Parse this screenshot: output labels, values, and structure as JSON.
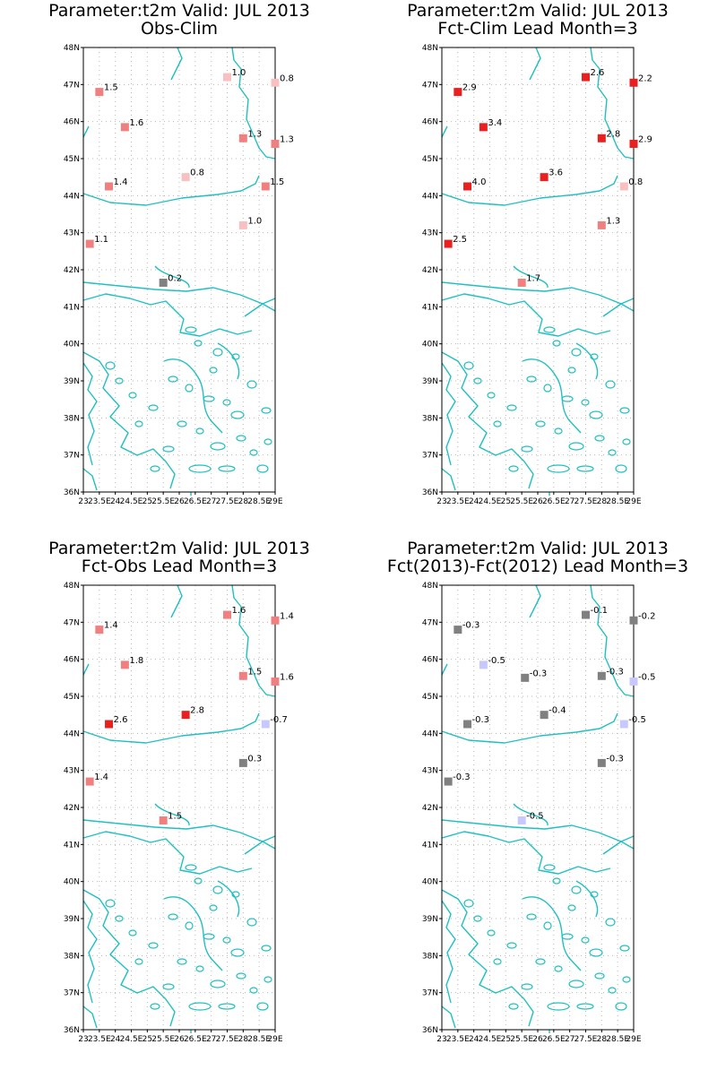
{
  "colors": {
    "coast": "#20c0c0",
    "grid": "#b8b8b8",
    "scale": {
      "dark_gray": "#808080",
      "light_blue": "#c8c8ff",
      "pale_pink": "#f8c0c0",
      "light_red": "#f08080",
      "red": "#e82020"
    }
  },
  "map": {
    "lon_range": [
      23,
      29
    ],
    "lat_range": [
      36,
      48
    ],
    "lon_ticks": [
      "23",
      "23.5E",
      "24",
      "24.5E",
      "25",
      "25.5E",
      "26",
      "26.5E",
      "27",
      "27.5E",
      "28",
      "28.5E",
      "29E"
    ],
    "lat_ticks": [
      "36N",
      "37N",
      "38N",
      "39N",
      "40N",
      "41N",
      "42N",
      "43N",
      "44N",
      "45N",
      "46N",
      "47N",
      "48N"
    ]
  },
  "panels": [
    {
      "title_line1": "Parameter:t2m Valid: JUL 2013",
      "title_line2": "Obs-Clim",
      "stations": [
        {
          "lon": 23.5,
          "lat": 46.8,
          "label": "1.5",
          "color": "light_red"
        },
        {
          "lon": 24.3,
          "lat": 45.85,
          "label": "1.6",
          "color": "light_red"
        },
        {
          "lon": 27.5,
          "lat": 47.2,
          "label": "1.0",
          "color": "pale_pink"
        },
        {
          "lon": 29.0,
          "lat": 47.05,
          "label": "0.8",
          "color": "pale_pink"
        },
        {
          "lon": 28.0,
          "lat": 45.55,
          "label": "1.3",
          "color": "light_red"
        },
        {
          "lon": 29.0,
          "lat": 45.4,
          "label": "1.3",
          "color": "light_red"
        },
        {
          "lon": 23.8,
          "lat": 44.25,
          "label": "1.4",
          "color": "light_red"
        },
        {
          "lon": 26.2,
          "lat": 44.5,
          "label": "0.8",
          "color": "pale_pink"
        },
        {
          "lon": 28.7,
          "lat": 44.25,
          "label": "1.5",
          "color": "light_red"
        },
        {
          "lon": 28.0,
          "lat": 43.2,
          "label": "1.0",
          "color": "pale_pink"
        },
        {
          "lon": 23.2,
          "lat": 42.7,
          "label": "1.1",
          "color": "light_red"
        },
        {
          "lon": 25.5,
          "lat": 41.65,
          "label": "0.2",
          "color": "dark_gray"
        }
      ]
    },
    {
      "title_line1": "Parameter:t2m Valid: JUL 2013",
      "title_line2": "Fct-Clim Lead Month=3",
      "stations": [
        {
          "lon": 23.5,
          "lat": 46.8,
          "label": "2.9",
          "color": "red"
        },
        {
          "lon": 24.3,
          "lat": 45.85,
          "label": "3.4",
          "color": "red"
        },
        {
          "lon": 27.5,
          "lat": 47.2,
          "label": "2.6",
          "color": "red"
        },
        {
          "lon": 29.0,
          "lat": 47.05,
          "label": "2.2",
          "color": "red"
        },
        {
          "lon": 28.0,
          "lat": 45.55,
          "label": "2.8",
          "color": "red"
        },
        {
          "lon": 29.0,
          "lat": 45.4,
          "label": "2.9",
          "color": "red"
        },
        {
          "lon": 23.8,
          "lat": 44.25,
          "label": "4.0",
          "color": "red"
        },
        {
          "lon": 26.2,
          "lat": 44.5,
          "label": "3.6",
          "color": "red"
        },
        {
          "lon": 28.7,
          "lat": 44.25,
          "label": "0.8",
          "color": "pale_pink"
        },
        {
          "lon": 28.0,
          "lat": 43.2,
          "label": "1.3",
          "color": "light_red"
        },
        {
          "lon": 23.2,
          "lat": 42.7,
          "label": "2.5",
          "color": "red"
        },
        {
          "lon": 25.5,
          "lat": 41.65,
          "label": "1.7",
          "color": "light_red"
        }
      ]
    },
    {
      "title_line1": "Parameter:t2m Valid: JUL 2013",
      "title_line2": "Fct-Obs Lead Month=3",
      "stations": [
        {
          "lon": 23.5,
          "lat": 46.8,
          "label": "1.4",
          "color": "light_red"
        },
        {
          "lon": 24.3,
          "lat": 45.85,
          "label": "1.8",
          "color": "light_red"
        },
        {
          "lon": 27.5,
          "lat": 47.2,
          "label": "1.6",
          "color": "light_red"
        },
        {
          "lon": 29.0,
          "lat": 47.05,
          "label": "1.4",
          "color": "light_red"
        },
        {
          "lon": 28.0,
          "lat": 45.55,
          "label": "1.5",
          "color": "light_red"
        },
        {
          "lon": 29.0,
          "lat": 45.4,
          "label": "1.6",
          "color": "light_red"
        },
        {
          "lon": 23.8,
          "lat": 44.25,
          "label": "2.6",
          "color": "red"
        },
        {
          "lon": 26.2,
          "lat": 44.5,
          "label": "2.8",
          "color": "red"
        },
        {
          "lon": 28.7,
          "lat": 44.25,
          "label": "-0.7",
          "color": "light_blue"
        },
        {
          "lon": 28.0,
          "lat": 43.2,
          "label": "0.3",
          "color": "dark_gray"
        },
        {
          "lon": 23.2,
          "lat": 42.7,
          "label": "1.4",
          "color": "light_red"
        },
        {
          "lon": 25.5,
          "lat": 41.65,
          "label": "1.5",
          "color": "light_red"
        }
      ]
    },
    {
      "title_line1": "Parameter:t2m Valid: JUL 2013",
      "title_line2": "Fct(2013)-Fct(2012) Lead Month=3",
      "stations": [
        {
          "lon": 23.5,
          "lat": 46.8,
          "label": "-0.3",
          "color": "dark_gray"
        },
        {
          "lon": 24.3,
          "lat": 45.85,
          "label": "-0.5",
          "color": "light_blue"
        },
        {
          "lon": 25.6,
          "lat": 45.5,
          "label": "-0.3",
          "color": "dark_gray"
        },
        {
          "lon": 27.5,
          "lat": 47.2,
          "label": "-0.1",
          "color": "dark_gray"
        },
        {
          "lon": 29.0,
          "lat": 47.05,
          "label": "-0.2",
          "color": "dark_gray"
        },
        {
          "lon": 28.0,
          "lat": 45.55,
          "label": "-0.3",
          "color": "dark_gray"
        },
        {
          "lon": 29.0,
          "lat": 45.4,
          "label": "-0.5",
          "color": "light_blue"
        },
        {
          "lon": 23.8,
          "lat": 44.25,
          "label": "-0.3",
          "color": "dark_gray"
        },
        {
          "lon": 26.2,
          "lat": 44.5,
          "label": "-0.4",
          "color": "dark_gray"
        },
        {
          "lon": 28.7,
          "lat": 44.25,
          "label": "-0.5",
          "color": "light_blue"
        },
        {
          "lon": 28.0,
          "lat": 43.2,
          "label": "-0.3",
          "color": "dark_gray"
        },
        {
          "lon": 23.2,
          "lat": 42.7,
          "label": "-0.3",
          "color": "dark_gray"
        },
        {
          "lon": 25.5,
          "lat": 41.65,
          "label": "-0.5",
          "color": "light_blue"
        }
      ]
    }
  ]
}
